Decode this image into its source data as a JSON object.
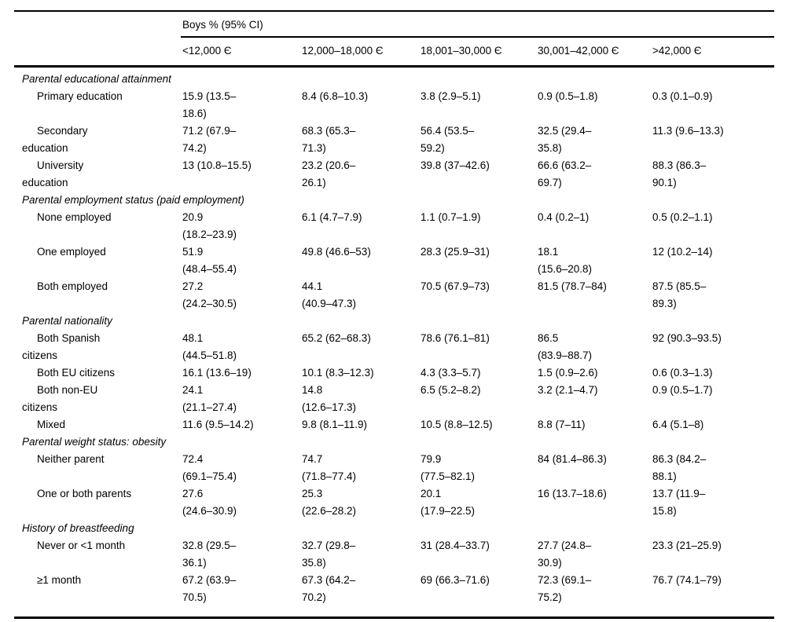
{
  "table": {
    "group_header": "Boys % (95% CI)",
    "columns": [
      "<12,000 Є",
      "12,000–18,000 Є",
      "18,001–30,000 Є",
      "30,001–42,000 Є",
      ">42,000 Є"
    ],
    "sections": [
      {
        "title": "Parental educational attainment",
        "rows": [
          {
            "label": "Primary education",
            "values": [
              "15.9 (13.5–\n18.6)",
              "8.4 (6.8–10.3)",
              "3.8 (2.9–5.1)",
              "0.9 (0.5–1.8)",
              "0.3 (0.1–0.9)"
            ]
          },
          {
            "label": "Secondary\neducation",
            "values": [
              "71.2 (67.9–\n74.2)",
              "68.3 (65.3–\n71.3)",
              "56.4 (53.5–\n59.2)",
              "32.5 (29.4–\n35.8)",
              "11.3 (9.6–13.3)"
            ]
          },
          {
            "label": "University\neducation",
            "values": [
              "13 (10.8–15.5)",
              "23.2 (20.6–\n26.1)",
              "39.8 (37–42.6)",
              "66.6 (63.2–\n69.7)",
              "88.3 (86.3–\n90.1)"
            ]
          }
        ]
      },
      {
        "title": "Parental employment status (paid employment)",
        "rows": [
          {
            "label": "None employed",
            "values": [
              "20.9\n(18.2–23.9)",
              "6.1 (4.7–7.9)",
              "1.1 (0.7–1.9)",
              "0.4 (0.2–1)",
              "0.5 (0.2–1.1)"
            ]
          },
          {
            "label": "One employed",
            "values": [
              "51.9\n(48.4–55.4)",
              "49.8 (46.6–53)",
              "28.3 (25.9–31)",
              "18.1\n(15.6–20.8)",
              "12 (10.2–14)"
            ]
          },
          {
            "label": "Both employed",
            "values": [
              "27.2\n(24.2–30.5)",
              "44.1\n(40.9–47.3)",
              "70.5 (67.9–73)",
              "81.5 (78.7–84)",
              "87.5 (85.5–\n89.3)"
            ]
          }
        ]
      },
      {
        "title": "Parental nationality",
        "rows": [
          {
            "label": "Both Spanish\ncitizens",
            "values": [
              "48.1\n(44.5–51.8)",
              "65.2 (62–68.3)",
              "78.6 (76.1–81)",
              "86.5\n(83.9–88.7)",
              "92 (90.3–93.5)"
            ]
          },
          {
            "label": "Both EU citizens",
            "values": [
              "16.1 (13.6–19)",
              "10.1 (8.3–12.3)",
              "4.3 (3.3–5.7)",
              "1.5 (0.9–2.6)",
              "0.6 (0.3–1.3)"
            ]
          },
          {
            "label": "Both non-EU\ncitizens",
            "values": [
              "24.1\n(21.1–27.4)",
              "14.8\n(12.6–17.3)",
              "6.5 (5.2–8.2)",
              "3.2 (2.1–4.7)",
              "0.9 (0.5–1.7)"
            ]
          },
          {
            "label": "Mixed",
            "values": [
              "11.6 (9.5–14.2)",
              "9.8 (8.1–11.9)",
              "10.5 (8.8–12.5)",
              "8.8 (7–11)",
              "6.4 (5.1–8)"
            ]
          }
        ]
      },
      {
        "title": "Parental weight status: obesity",
        "rows": [
          {
            "label": "Neither parent",
            "values": [
              "72.4\n(69.1–75.4)",
              "74.7\n(71.8–77.4)",
              "79.9\n(77.5–82.1)",
              "84 (81.4–86.3)",
              "86.3 (84.2–\n88.1)"
            ]
          },
          {
            "label": "One or both parents",
            "values": [
              "27.6\n(24.6–30.9)",
              "25.3\n(22.6–28.2)",
              "20.1\n(17.9–22.5)",
              "16 (13.7–18.6)",
              "13.7 (11.9–\n15.8)"
            ]
          }
        ]
      },
      {
        "title": "History of breastfeeding",
        "rows": [
          {
            "label": "Never or <1 month",
            "values": [
              "32.8 (29.5–\n36.1)",
              "32.7 (29.8–\n35.8)",
              "31 (28.4–33.7)",
              "27.7 (24.8–\n30.9)",
              "23.3 (21–25.9)"
            ]
          },
          {
            "label": "≥1 month",
            "values": [
              "67.2 (63.9–\n70.5)",
              "67.3 (64.2–\n70.2)",
              "69 (66.3–71.6)",
              "72.3 (69.1–\n75.2)",
              "76.7 (74.1–79)"
            ]
          }
        ]
      }
    ]
  }
}
